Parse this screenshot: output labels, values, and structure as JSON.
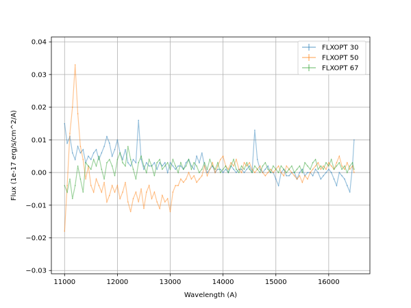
{
  "chart_data": {
    "type": "line",
    "title": "",
    "xlabel": "Wavelength (A)",
    "ylabel": "Flux (1e-17 erg/s/cm^2/A)",
    "xlim": [
      10750,
      16780
    ],
    "ylim": [
      -0.031,
      0.0415
    ],
    "xticks": [
      11000,
      12000,
      13000,
      14000,
      15000,
      16000
    ],
    "xtick_labels": [
      "11000",
      "12000",
      "13000",
      "14000",
      "15000",
      "16000"
    ],
    "yticks": [
      -0.03,
      -0.02,
      -0.01,
      0.0,
      0.01,
      0.02,
      0.03,
      0.04
    ],
    "ytick_labels": [
      "−0.03",
      "−0.02",
      "−0.01",
      "0.00",
      "0.01",
      "0.02",
      "0.03",
      "0.04"
    ],
    "grid": true,
    "legend_position": "top-right",
    "series": [
      {
        "name": "FLXOPT 30",
        "color": "#1f77b4",
        "x": [
          11000,
          11050,
          11100,
          11150,
          11200,
          11250,
          11300,
          11350,
          11400,
          11450,
          11500,
          11550,
          11600,
          11650,
          11700,
          11750,
          11800,
          11850,
          11900,
          11950,
          12000,
          12050,
          12100,
          12150,
          12200,
          12250,
          12300,
          12350,
          12400,
          12450,
          12500,
          12550,
          12600,
          12650,
          12700,
          12750,
          12800,
          12850,
          12900,
          12950,
          13000,
          13050,
          13100,
          13150,
          13200,
          13250,
          13300,
          13350,
          13400,
          13450,
          13500,
          13550,
          13600,
          13650,
          13700,
          13750,
          13800,
          13850,
          13900,
          13950,
          14000,
          14050,
          14100,
          14150,
          14200,
          14250,
          14300,
          14350,
          14400,
          14450,
          14500,
          14550,
          14600,
          14650,
          14700,
          14750,
          14800,
          14850,
          14900,
          14950,
          15000,
          15050,
          15100,
          15150,
          15200,
          15250,
          15300,
          15350,
          15400,
          15450,
          15500,
          15550,
          15600,
          15650,
          15700,
          15750,
          15800,
          15850,
          15900,
          15950,
          16000,
          16050,
          16100,
          16150,
          16200,
          16250,
          16300,
          16350,
          16400,
          16450,
          16480
        ],
        "y": [
          0.015,
          0.009,
          0.011,
          0.006,
          0.004,
          0.008,
          0.006,
          0.007,
          0.003,
          0.005,
          0.004,
          0.006,
          0.007,
          0.004,
          0.006,
          0.008,
          0.011,
          0.009,
          0.005,
          0.007,
          0.01,
          0.006,
          0.004,
          0.007,
          0.003,
          0.002,
          0.004,
          0.003,
          0.016,
          0.004,
          0.001,
          0.003,
          0.002,
          0.002,
          0.003,
          0.001,
          0.003,
          0.002,
          0.003,
          0.0,
          0.003,
          0.002,
          0.001,
          0.002,
          0.002,
          0.001,
          0.003,
          0.004,
          0.002,
          0.001,
          0.005,
          0.003,
          0.006,
          0.002,
          0.0,
          0.001,
          0.002,
          0.0,
          0.001,
          0.001,
          0.0,
          0.001,
          0.0,
          0.002,
          0.001,
          0.0,
          0.001,
          0.001,
          0.0,
          0.001,
          0.002,
          0.0,
          0.013,
          0.004,
          0.001,
          0.0,
          0.001,
          0.002,
          0.0,
          0.0,
          -0.002,
          -0.004,
          0.0,
          0.001,
          -0.001,
          -0.001,
          0.0,
          0.0,
          -0.002,
          0.0,
          0.001,
          -0.001,
          0.0,
          0.0,
          -0.001,
          0.001,
          0.0,
          -0.002,
          -0.001,
          0.0,
          0.001,
          0.0,
          -0.002,
          -0.004,
          0.0,
          -0.001,
          -0.002,
          -0.004,
          -0.006,
          0.002,
          0.01
        ]
      },
      {
        "name": "FLXOPT 50",
        "color": "#ff7f0e",
        "x": [
          11000,
          11050,
          11100,
          11150,
          11200,
          11250,
          11300,
          11350,
          11400,
          11450,
          11500,
          11550,
          11600,
          11650,
          11700,
          11750,
          11800,
          11850,
          11900,
          11950,
          12000,
          12050,
          12100,
          12150,
          12200,
          12250,
          12300,
          12350,
          12400,
          12450,
          12500,
          12550,
          12600,
          12650,
          12700,
          12750,
          12800,
          12850,
          12900,
          12950,
          13000,
          13050,
          13100,
          13150,
          13200,
          13250,
          13300,
          13350,
          13400,
          13450,
          13500,
          13550,
          13600,
          13650,
          13700,
          13750,
          13800,
          13850,
          13900,
          13950,
          14000,
          14050,
          14100,
          14150,
          14200,
          14250,
          14300,
          14350,
          14400,
          14450,
          14500,
          14550,
          14600,
          14650,
          14700,
          14750,
          14800,
          14850,
          14900,
          14950,
          15000,
          15050,
          15100,
          15150,
          15200,
          15250,
          15300,
          15350,
          15400,
          15450,
          15500,
          15550,
          15600,
          15650,
          15700,
          15750,
          15800,
          15850,
          15900,
          15950,
          16000,
          16050,
          16100,
          16150,
          16200,
          16250,
          16300,
          16350,
          16400,
          16450,
          16480
        ],
        "y": [
          -0.018,
          -0.004,
          0.012,
          0.02,
          0.033,
          0.018,
          0.008,
          0.004,
          -0.002,
          0.002,
          -0.004,
          -0.006,
          -0.002,
          -0.004,
          -0.006,
          -0.003,
          -0.009,
          -0.007,
          -0.004,
          -0.006,
          -0.004,
          -0.008,
          -0.006,
          -0.003,
          -0.009,
          -0.012,
          -0.008,
          -0.006,
          -0.009,
          -0.005,
          -0.011,
          -0.006,
          -0.004,
          -0.008,
          -0.006,
          -0.009,
          -0.011,
          -0.007,
          -0.009,
          -0.008,
          -0.012,
          -0.006,
          -0.004,
          -0.004,
          -0.002,
          -0.003,
          -0.002,
          0.0,
          -0.002,
          -0.001,
          -0.003,
          -0.002,
          -0.001,
          0.002,
          -0.001,
          0.001,
          0.003,
          0.0,
          0.002,
          0.004,
          0.005,
          0.002,
          0.001,
          0.003,
          0.002,
          0.004,
          0.001,
          0.0,
          0.003,
          0.002,
          0.003,
          0.001,
          0.0,
          0.001,
          0.002,
          0.0,
          -0.001,
          0.0,
          0.001,
          0.0,
          0.001,
          0.002,
          0.0,
          -0.001,
          0.002,
          0.001,
          0.0,
          -0.001,
          -0.002,
          -0.001,
          -0.003,
          -0.001,
          -0.002,
          0.0,
          0.001,
          0.002,
          0.003,
          0.001,
          0.002,
          0.001,
          0.003,
          0.002,
          0.001,
          0.003,
          0.005,
          0.002,
          0.001,
          0.003,
          0.001,
          0.002,
          0.0
        ]
      },
      {
        "name": "FLXOPT 67",
        "color": "#2ca02c",
        "x": [
          11000,
          11050,
          11100,
          11150,
          11200,
          11250,
          11300,
          11350,
          11400,
          11450,
          11500,
          11550,
          11600,
          11650,
          11700,
          11750,
          11800,
          11850,
          11900,
          11950,
          12000,
          12050,
          12100,
          12150,
          12200,
          12250,
          12300,
          12350,
          12400,
          12450,
          12500,
          12550,
          12600,
          12650,
          12700,
          12750,
          12800,
          12850,
          12900,
          12950,
          13000,
          13050,
          13100,
          13150,
          13200,
          13250,
          13300,
          13350,
          13400,
          13450,
          13500,
          13550,
          13600,
          13650,
          13700,
          13750,
          13800,
          13850,
          13900,
          13950,
          14000,
          14050,
          14100,
          14150,
          14200,
          14250,
          14300,
          14350,
          14400,
          14450,
          14500,
          14550,
          14600,
          14650,
          14700,
          14750,
          14800,
          14850,
          14900,
          14950,
          15000,
          15050,
          15100,
          15150,
          15200,
          15250,
          15300,
          15350,
          15400,
          15450,
          15500,
          15550,
          15600,
          15650,
          15700,
          15750,
          15800,
          15850,
          15900,
          15950,
          16000,
          16050,
          16100,
          16150,
          16200,
          16250,
          16300,
          16350,
          16400,
          16450,
          16480
        ],
        "y": [
          -0.004,
          -0.006,
          -0.002,
          -0.008,
          -0.004,
          0.002,
          -0.002,
          -0.006,
          0.003,
          0.002,
          0.001,
          0.004,
          0.002,
          0.005,
          0.001,
          -0.002,
          0.003,
          0.004,
          0.002,
          -0.001,
          0.004,
          0.006,
          0.003,
          0.002,
          0.008,
          0.004,
          0.001,
          -0.002,
          0.003,
          0.005,
          0.002,
          0.0,
          0.004,
          0.002,
          -0.001,
          0.003,
          0.004,
          0.001,
          0.002,
          0.003,
          0.001,
          0.004,
          0.002,
          0.0,
          0.003,
          0.001,
          0.002,
          0.004,
          0.001,
          0.003,
          0.002,
          0.0,
          0.001,
          0.003,
          0.001,
          0.004,
          0.002,
          0.001,
          0.003,
          0.0,
          0.001,
          0.002,
          0.0,
          0.002,
          0.004,
          0.001,
          0.0,
          0.002,
          0.001,
          0.003,
          0.001,
          0.0,
          0.002,
          0.001,
          0.0,
          0.002,
          0.003,
          0.001,
          0.0,
          0.002,
          0.001,
          0.0,
          0.002,
          0.001,
          0.0,
          0.001,
          0.002,
          0.0,
          0.001,
          0.002,
          0.0,
          0.003,
          0.002,
          0.001,
          0.003,
          0.004,
          0.001,
          0.002,
          0.001,
          0.003,
          0.002,
          0.004,
          0.001,
          0.002,
          0.003,
          0.001,
          0.002,
          0.0,
          0.002,
          0.003,
          0.001
        ]
      }
    ]
  }
}
